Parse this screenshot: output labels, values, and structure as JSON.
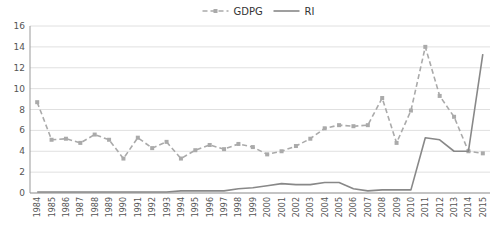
{
  "chart_data": {
    "type": "line",
    "x": [
      1984,
      1985,
      1986,
      1987,
      1988,
      1989,
      1990,
      1991,
      1992,
      1993,
      1994,
      1995,
      1996,
      1997,
      1998,
      1999,
      2000,
      2001,
      2002,
      2003,
      2004,
      2005,
      2006,
      2007,
      2008,
      2009,
      2010,
      2011,
      2012,
      2013,
      2014,
      2015
    ],
    "series": [
      {
        "name": "GDPG",
        "color": "#aaaaaa",
        "line_style": "dashed",
        "marker": "square",
        "values": [
          8.7,
          5.1,
          5.2,
          4.8,
          5.6,
          5.1,
          3.3,
          5.3,
          4.3,
          4.9,
          3.3,
          4.1,
          4.6,
          4.2,
          4.7,
          4.4,
          3.7,
          4.0,
          4.5,
          5.2,
          6.2,
          6.5,
          6.4,
          6.5,
          9.1,
          4.8,
          7.9,
          14.0,
          9.3,
          7.3,
          4.0,
          3.8
        ]
      },
      {
        "name": "RI",
        "color": "#888888",
        "line_style": "solid",
        "marker": "none",
        "values": [
          0.1,
          0.1,
          0.1,
          0.1,
          0.1,
          0.1,
          0.1,
          0.1,
          0.1,
          0.1,
          0.2,
          0.2,
          0.2,
          0.2,
          0.4,
          0.5,
          0.7,
          0.9,
          0.8,
          0.8,
          1.0,
          1.0,
          0.4,
          0.2,
          0.3,
          0.3,
          0.3,
          5.3,
          5.1,
          4.0,
          4.0,
          13.3
        ]
      }
    ],
    "xlim": [
      1983.5,
      2015.5
    ],
    "xticks": [
      1984,
      1985,
      1986,
      1987,
      1988,
      1989,
      1990,
      1991,
      1992,
      1993,
      1994,
      1995,
      1996,
      1997,
      1998,
      1999,
      2000,
      2001,
      2002,
      2003,
      2004,
      2005,
      2006,
      2007,
      2008,
      2009,
      2010,
      2011,
      2012,
      2013,
      2014,
      2015
    ],
    "ylim": [
      0,
      16
    ],
    "yticks": [
      0,
      2,
      4,
      6,
      8,
      10,
      12,
      14,
      16
    ],
    "grid": true,
    "legend": "top"
  }
}
